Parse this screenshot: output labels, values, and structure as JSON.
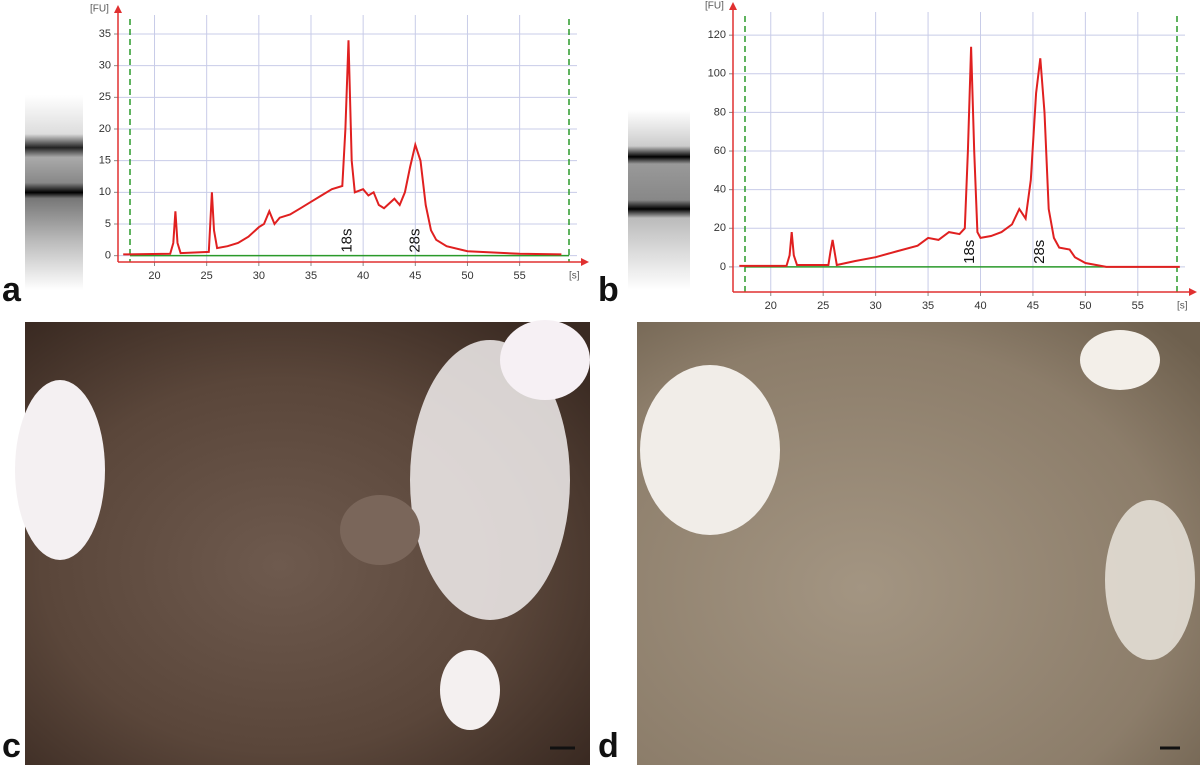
{
  "panel_labels": [
    "a",
    "b",
    "c",
    "d"
  ],
  "chart_data": [
    {
      "type": "line",
      "y_label": "[FU]",
      "x_label": "[s]",
      "x": [
        17,
        21.5,
        21.8,
        22,
        22.2,
        22.5,
        25.2,
        25.5,
        25.7,
        26,
        27,
        28,
        29,
        30,
        30.5,
        31,
        31.5,
        32,
        33,
        34,
        35,
        36,
        37,
        38,
        38.3,
        38.6,
        38.9,
        39.2,
        40,
        40.5,
        41,
        41.5,
        42,
        43,
        43.5,
        44,
        44.5,
        45,
        45.5,
        46,
        46.5,
        47,
        48,
        50,
        55,
        59
      ],
      "series": [
        {
          "color": "#e02020",
          "values": [
            0.2,
            0.3,
            2,
            7,
            2,
            0.4,
            0.6,
            10,
            4,
            1.2,
            1.5,
            2,
            3,
            4.5,
            5,
            7,
            5,
            6,
            6.5,
            7.5,
            8.5,
            9.5,
            10.5,
            11,
            20,
            34,
            15,
            10,
            10.5,
            9.5,
            10,
            8,
            7.5,
            9,
            8,
            10,
            14,
            17.5,
            15,
            8,
            4,
            2.5,
            1.5,
            0.7,
            0.3,
            0.2
          ]
        }
      ],
      "annotations": [
        {
          "text": "18s",
          "x": 38.5
        },
        {
          "text": "28s",
          "x": 45
        }
      ],
      "xlim": [
        16.5,
        60.5
      ],
      "ylim": [
        -1,
        38
      ],
      "xticks": [
        20,
        25,
        30,
        35,
        40,
        45,
        50,
        55
      ],
      "yticks": [
        0,
        5,
        10,
        15,
        20,
        25,
        30,
        35
      ],
      "grid": true
    },
    {
      "type": "line",
      "y_label": "[FU]",
      "x_label": "[s]",
      "x": [
        17,
        21.5,
        21.8,
        22,
        22.2,
        22.5,
        25.5,
        25.7,
        25.9,
        26.3,
        28,
        30,
        32,
        34,
        35,
        36,
        37,
        38,
        38.5,
        38.8,
        39.1,
        39.4,
        39.7,
        40,
        41,
        42,
        43,
        43.7,
        44.3,
        44.8,
        45.3,
        45.7,
        46.1,
        46.5,
        47,
        47.5,
        48.5,
        49,
        50,
        52,
        55,
        59
      ],
      "series": [
        {
          "color": "#e02020",
          "values": [
            0.5,
            0.5,
            6,
            18,
            6,
            1,
            1,
            8,
            14,
            1,
            3,
            5,
            8,
            11,
            15,
            14,
            18,
            17,
            20,
            60,
            114,
            60,
            18,
            15,
            16,
            18,
            22,
            30,
            25,
            45,
            90,
            108,
            80,
            30,
            15,
            10,
            9,
            5,
            2,
            0,
            0,
            0
          ]
        }
      ],
      "annotations": [
        {
          "text": "18s",
          "x": 39
        },
        {
          "text": "28s",
          "x": 45.7
        }
      ],
      "xlim": [
        16.4,
        59.5
      ],
      "ylim": [
        -13,
        132
      ],
      "xticks": [
        20,
        25,
        30,
        35,
        40,
        45,
        50,
        55
      ],
      "yticks": [
        0,
        20,
        40,
        60,
        80,
        100,
        120
      ],
      "grid": true
    }
  ]
}
